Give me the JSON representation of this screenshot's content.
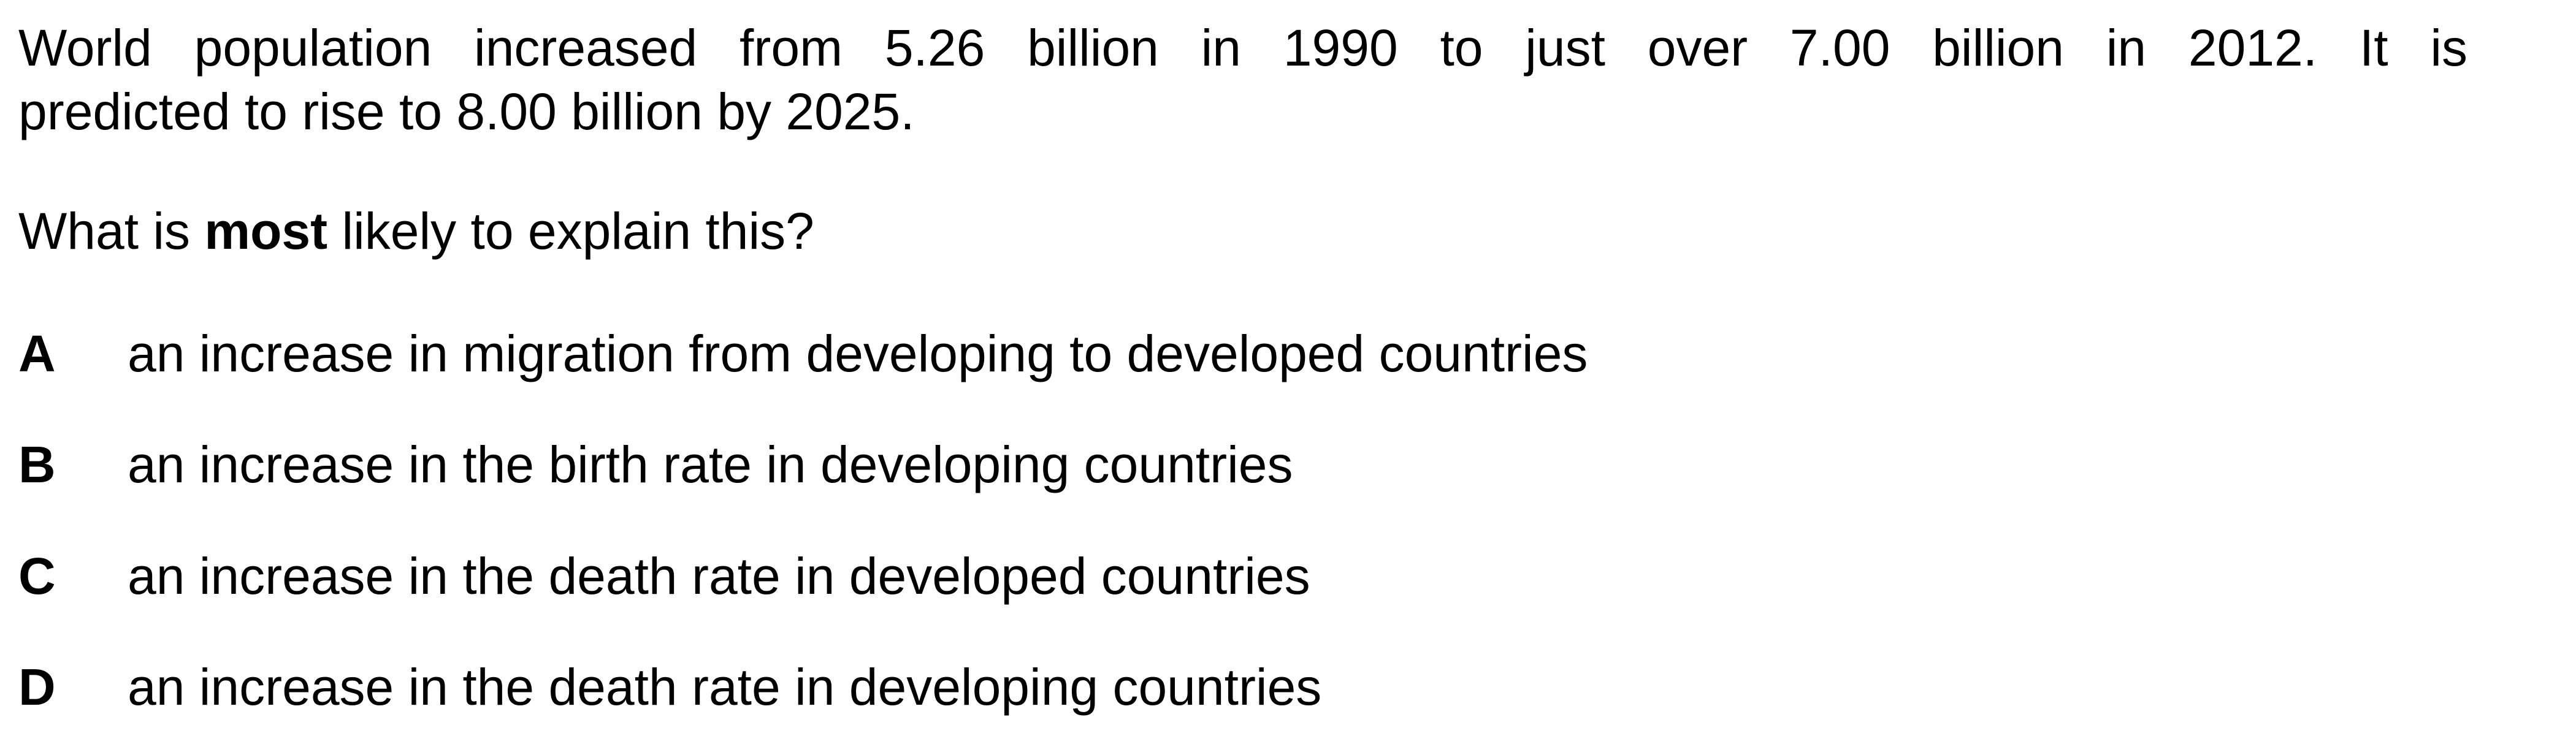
{
  "stem": {
    "line1": "World population increased from 5.26 billion in 1990 to just over 7.00 billion in 2012. It is",
    "line2": "predicted to rise to 8.00 billion by 2025."
  },
  "question": {
    "prefix": "What is ",
    "emphasis": "most",
    "suffix": " likely to explain this?"
  },
  "options": [
    {
      "letter": "A",
      "text": "an increase in migration from developing to developed countries"
    },
    {
      "letter": "B",
      "text": "an increase in the birth rate in developing countries"
    },
    {
      "letter": "C",
      "text": "an increase in the death rate in developed countries"
    },
    {
      "letter": "D",
      "text": "an increase in the death rate in developing countries"
    }
  ]
}
